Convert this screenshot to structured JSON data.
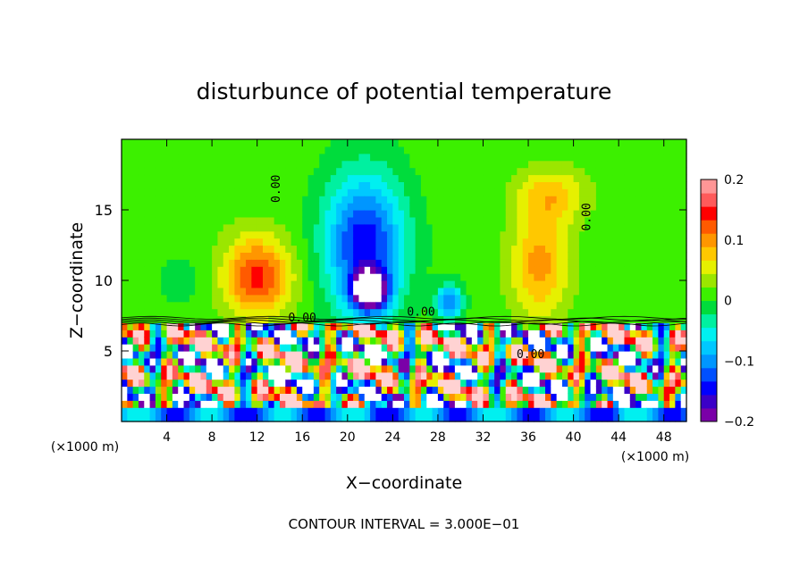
{
  "chart_data": {
    "type": "heatmap",
    "title": "disturbunce of potential temperature",
    "xlabel": "X−coordinate",
    "ylabel": "Z−coordinate",
    "x_unit": "(×1000 m)",
    "z_unit": "(×1000 m)",
    "footer": "CONTOUR INTERVAL = 3.000E−01",
    "xlim": [
      0,
      50
    ],
    "ylim": [
      0,
      20
    ],
    "x_ticks": [
      4,
      8,
      12,
      16,
      20,
      24,
      28,
      32,
      36,
      40,
      44,
      48
    ],
    "x_tick_labels": [
      "4",
      "8",
      "12",
      "16",
      "20",
      "24",
      "28",
      "32",
      "36",
      "40",
      "44",
      "48"
    ],
    "y_ticks": [
      5,
      10,
      15
    ],
    "y_tick_labels": [
      "5",
      "10",
      "15"
    ],
    "colorbar": {
      "range": [
        -0.2,
        0.2
      ],
      "tick_values": [
        0.2,
        0.1,
        0,
        -0.1,
        -0.2
      ],
      "tick_labels": [
        "0.2",
        "0.1",
        "0",
        "−0.1",
        "−0.2"
      ],
      "colors": [
        "#7a00a8",
        "#3b00c8",
        "#0000ff",
        "#0050ff",
        "#0096ff",
        "#00c8ff",
        "#00f0f0",
        "#00f0a0",
        "#00dc3c",
        "#3cf000",
        "#9be600",
        "#e6f000",
        "#ffc800",
        "#ff9600",
        "#ff5a00",
        "#ff0000",
        "#ff5a5a",
        "#ff9696"
      ]
    },
    "zero_contour_labels": [
      "0.00",
      "0.00",
      "0.00",
      "0.00",
      "0.00"
    ],
    "upper_features": [
      {
        "x_center": 5.5,
        "z_center": 10.0,
        "x_halfwidth": 2.5,
        "z_halfwidth": 2.0,
        "value": -0.02
      },
      {
        "x_center": 12.0,
        "z_center": 10.3,
        "x_halfwidth": 3.0,
        "z_halfwidth": 2.8,
        "value": 0.13
      },
      {
        "x_center": 21.5,
        "z_center": 12.5,
        "x_halfwidth": 3.5,
        "z_halfwidth": 5.0,
        "value": -0.16
      },
      {
        "x_center": 22.0,
        "z_center": 9.3,
        "x_halfwidth": 1.5,
        "z_halfwidth": 1.3,
        "value": -0.25
      },
      {
        "x_center": 29.0,
        "z_center": 8.5,
        "x_halfwidth": 1.2,
        "z_halfwidth": 1.2,
        "value": -0.12
      },
      {
        "x_center": 37.0,
        "z_center": 11.0,
        "x_halfwidth": 2.5,
        "z_halfwidth": 3.5,
        "value": 0.09
      },
      {
        "x_center": 38.0,
        "z_center": 16.0,
        "x_halfwidth": 3.0,
        "z_halfwidth": 2.0,
        "value": 0.07
      }
    ],
    "interface_height": 7.2,
    "interface_features": [
      0.6,
      0.65,
      0.7,
      0.8,
      0.9
    ]
  }
}
